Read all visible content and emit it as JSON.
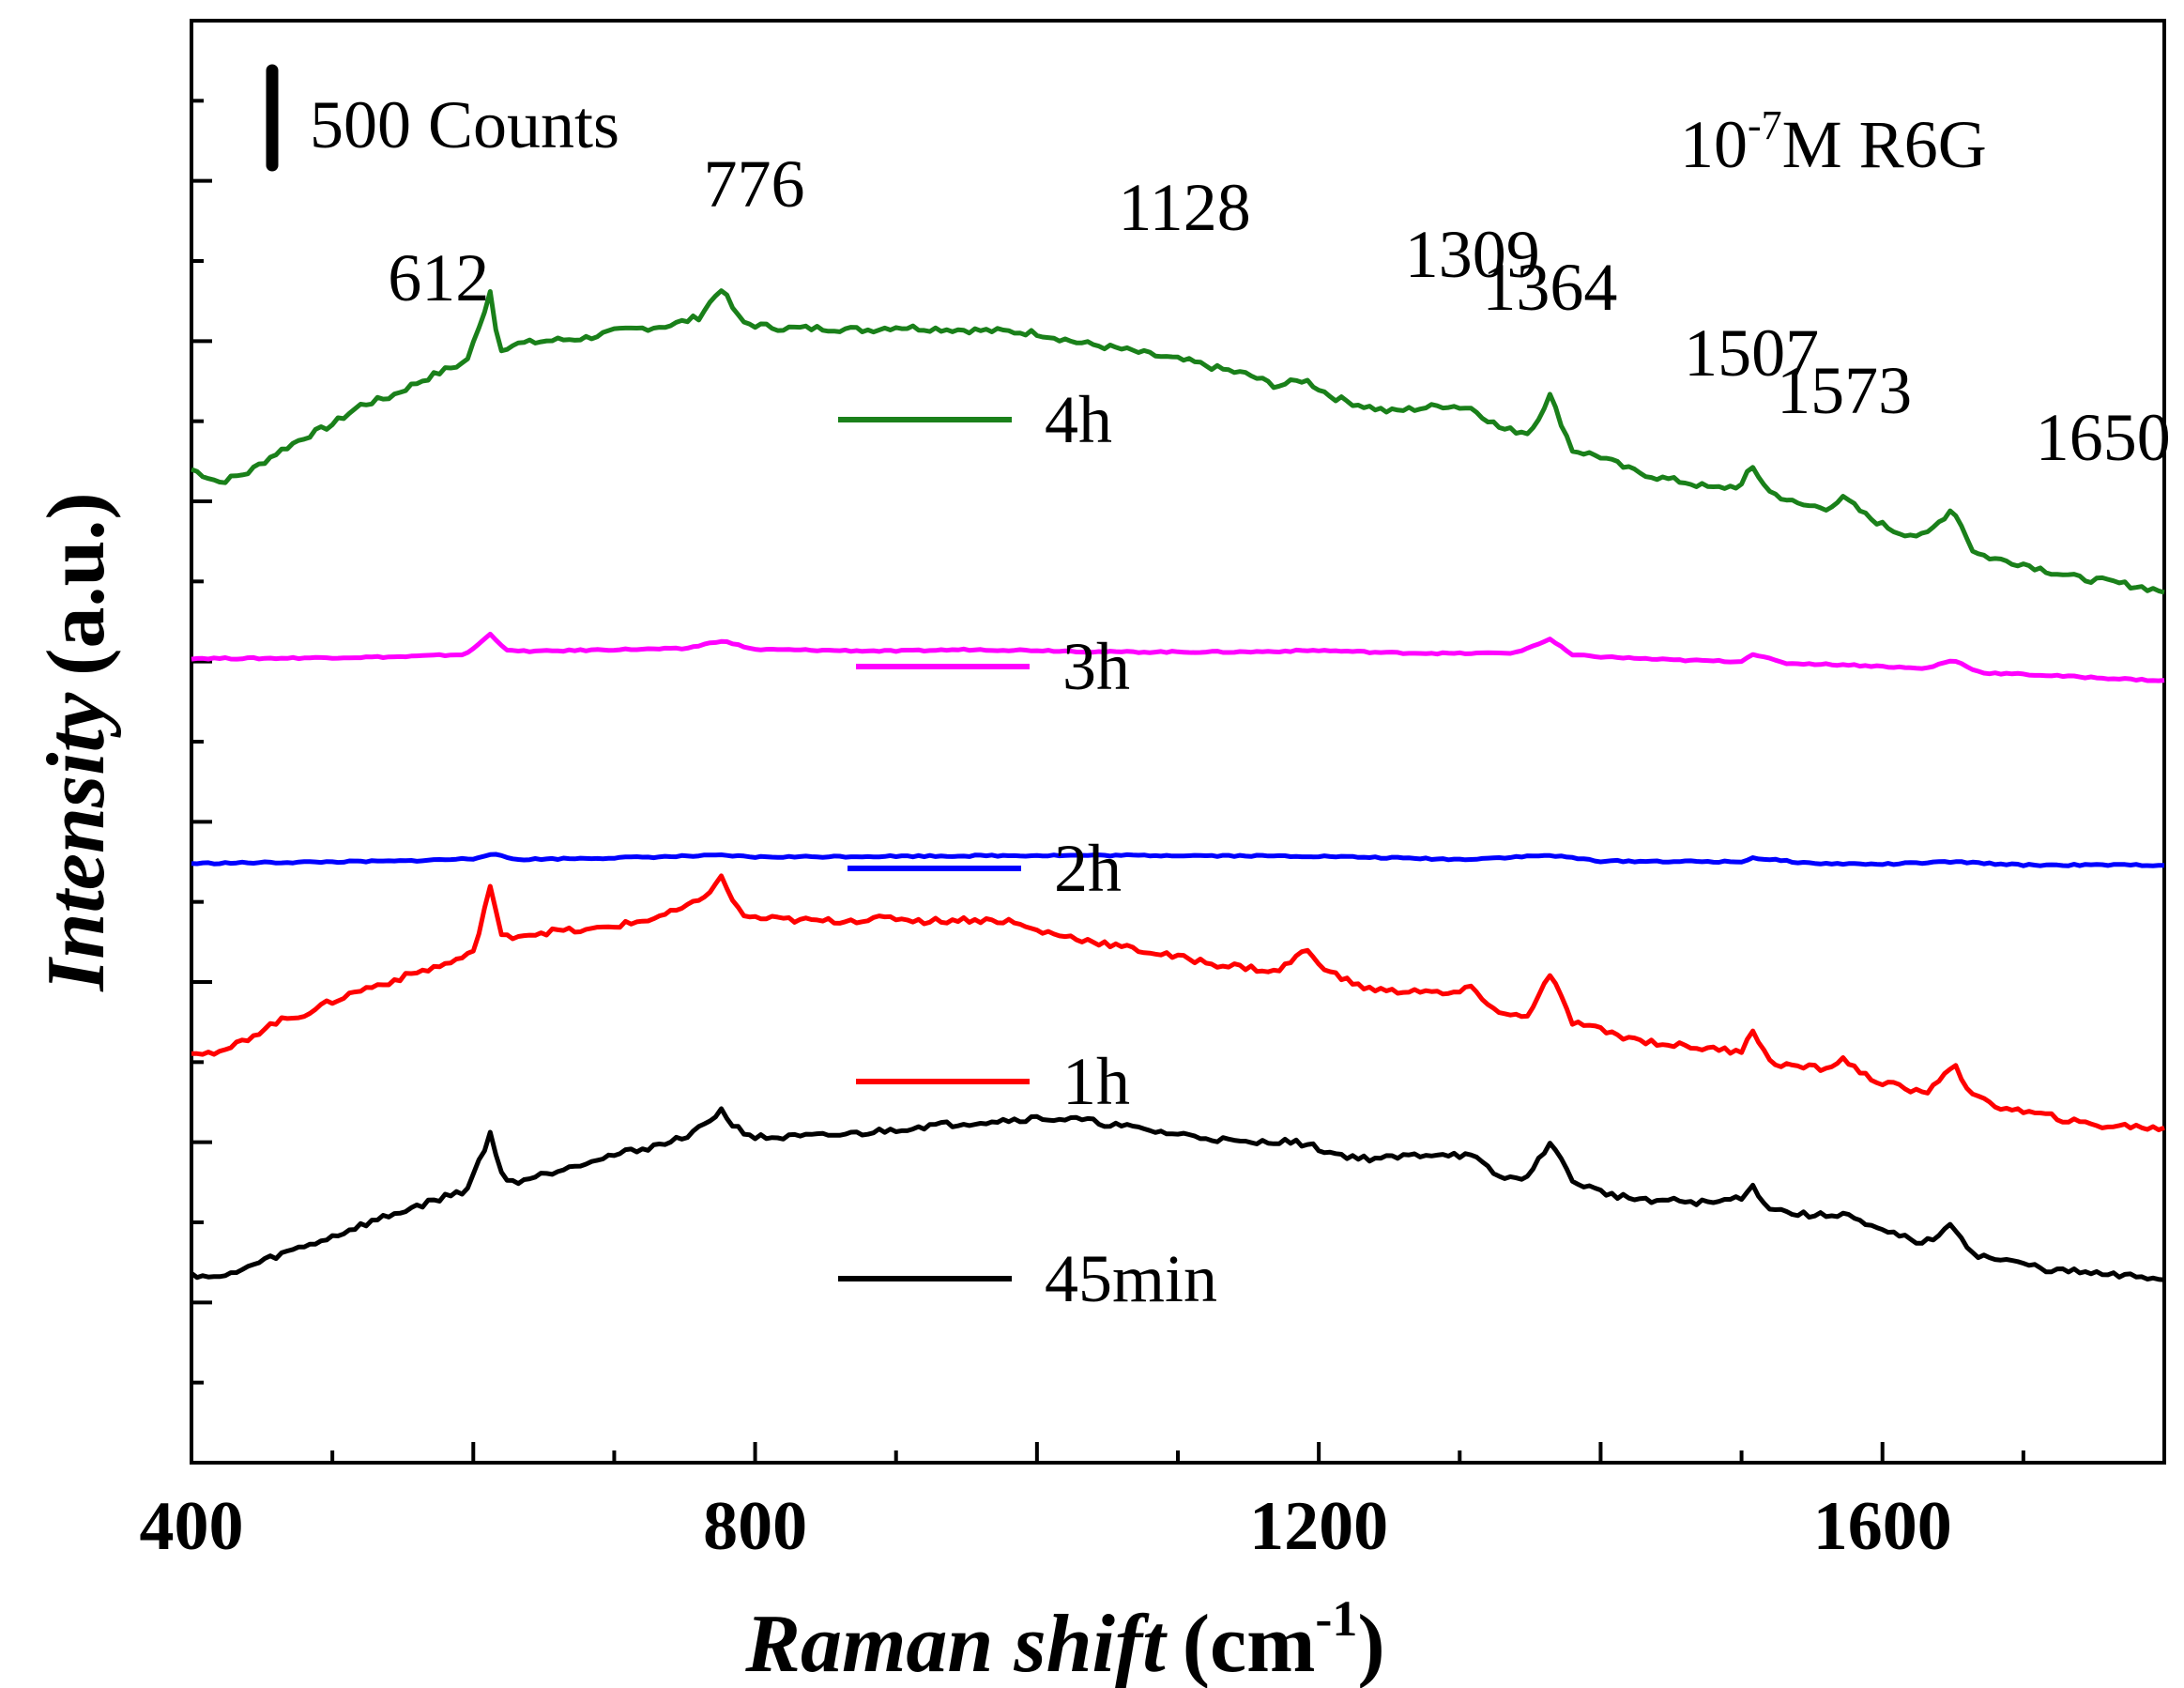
{
  "chart_data": {
    "type": "line",
    "title": "",
    "xlabel_italic": "Raman shift",
    "xlabel_unit_prefix": "(cm",
    "xlabel_unit_sup": "-1",
    "xlabel_unit_suffix": ")",
    "ylabel_italic": "Intensity",
    "ylabel_unit": "(a.u.)",
    "xlim": [
      400,
      1800
    ],
    "ylim": [
      0,
      9000
    ],
    "x_ticks": [
      400,
      800,
      1200,
      1600
    ],
    "x_tick_labels": [
      "400",
      "800",
      "1200",
      "1600"
    ],
    "y_tick_labels_shown": false,
    "scale_bar_label": "500 Counts",
    "scale_bar_value": 500,
    "sample_label_prefix": "10",
    "sample_label_sup": "-7",
    "sample_label_suffix": "M R6G",
    "peak_labels": [
      {
        "label": "612",
        "x": 612
      },
      {
        "label": "776",
        "x": 776
      },
      {
        "label": "1128",
        "x": 1128
      },
      {
        "label": "1309",
        "x": 1309
      },
      {
        "label": "1364",
        "x": 1364
      },
      {
        "label": "1507",
        "x": 1507
      },
      {
        "label": "1573",
        "x": 1573
      },
      {
        "label": "1650",
        "x": 1650
      }
    ],
    "series": [
      {
        "name": "4h",
        "color": "#1a801a",
        "x": [
          400,
          420,
          440,
          460,
          480,
          500,
          520,
          540,
          560,
          580,
          595,
          605,
          612,
          618,
          630,
          650,
          680,
          700,
          720,
          740,
          760,
          776,
          790,
          800,
          820,
          850,
          880,
          900,
          920,
          950,
          980,
          1000,
          1030,
          1060,
          1090,
          1110,
          1128,
          1150,
          1170,
          1190,
          1210,
          1230,
          1250,
          1270,
          1290,
          1309,
          1330,
          1350,
          1364,
          1380,
          1400,
          1420,
          1440,
          1460,
          1480,
          1500,
          1507,
          1520,
          1540,
          1560,
          1573,
          1590,
          1610,
          1630,
          1650,
          1665,
          1680,
          1700,
          1720,
          1740,
          1760,
          1780,
          1800
        ],
        "y": [
          6200,
          6120,
          6180,
          6300,
          6400,
          6480,
          6600,
          6650,
          6740,
          6820,
          6870,
          7100,
          7320,
          6950,
          6980,
          7000,
          7020,
          7060,
          7080,
          7100,
          7150,
          7330,
          7120,
          7100,
          7080,
          7080,
          7070,
          7090,
          7080,
          7070,
          7060,
          7050,
          6990,
          6950,
          6900,
          6870,
          6830,
          6790,
          6720,
          6760,
          6650,
          6600,
          6560,
          6580,
          6600,
          6580,
          6450,
          6430,
          6660,
          6320,
          6280,
          6200,
          6150,
          6120,
          6080,
          6100,
          6220,
          6060,
          5980,
          5960,
          6020,
          5900,
          5810,
          5780,
          5960,
          5680,
          5640,
          5610,
          5560,
          5520,
          5500,
          5470,
          5440
        ]
      },
      {
        "name": "3h",
        "color": "#ff00ff",
        "x": [
          400,
          450,
          500,
          550,
          595,
          612,
          625,
          650,
          700,
          750,
          776,
          800,
          850,
          900,
          950,
          1000,
          1050,
          1100,
          1150,
          1200,
          1250,
          1300,
          1340,
          1364,
          1380,
          1400,
          1450,
          1500,
          1507,
          1530,
          1573,
          1600,
          1630,
          1650,
          1670,
          1700,
          1750,
          1800
        ],
        "y": [
          5020,
          5020,
          5025,
          5030,
          5045,
          5170,
          5065,
          5065,
          5075,
          5080,
          5130,
          5075,
          5070,
          5065,
          5075,
          5070,
          5060,
          5060,
          5060,
          5070,
          5055,
          5050,
          5055,
          5140,
          5040,
          5030,
          5010,
          5000,
          5050,
          4990,
          4980,
          4970,
          4955,
          5010,
          4930,
          4920,
          4900,
          4880
        ]
      },
      {
        "name": "2h",
        "color": "#0000ff",
        "x": [
          400,
          450,
          500,
          550,
          600,
          612,
          630,
          700,
          776,
          800,
          900,
          1000,
          1100,
          1200,
          1300,
          1364,
          1400,
          1500,
          1507,
          1550,
          1600,
          1650,
          1700,
          1800
        ],
        "y": [
          3740,
          3745,
          3750,
          3755,
          3770,
          3800,
          3765,
          3775,
          3790,
          3780,
          3785,
          3790,
          3790,
          3785,
          3765,
          3790,
          3755,
          3750,
          3775,
          3740,
          3735,
          3750,
          3730,
          3730
        ]
      },
      {
        "name": "1h",
        "color": "#ff0000",
        "x": [
          400,
          420,
          440,
          460,
          480,
          500,
          520,
          540,
          560,
          580,
          600,
          612,
          620,
          640,
          660,
          680,
          700,
          720,
          740,
          760,
          776,
          790,
          800,
          820,
          850,
          880,
          900,
          920,
          950,
          980,
          1000,
          1030,
          1060,
          1090,
          1110,
          1128,
          1150,
          1170,
          1190,
          1210,
          1230,
          1250,
          1270,
          1290,
          1309,
          1330,
          1350,
          1364,
          1380,
          1400,
          1420,
          1440,
          1460,
          1480,
          1500,
          1507,
          1520,
          1540,
          1560,
          1573,
          1590,
          1610,
          1630,
          1650,
          1665,
          1680,
          1700,
          1720,
          1740,
          1760,
          1780,
          1800
        ],
        "y": [
          2570,
          2550,
          2650,
          2750,
          2800,
          2880,
          2950,
          3000,
          3060,
          3110,
          3180,
          3600,
          3280,
          3300,
          3320,
          3320,
          3350,
          3380,
          3430,
          3500,
          3650,
          3420,
          3400,
          3390,
          3380,
          3390,
          3400,
          3380,
          3390,
          3380,
          3320,
          3270,
          3220,
          3170,
          3140,
          3110,
          3090,
          3060,
          3200,
          3050,
          2970,
          2940,
          2950,
          2920,
          2960,
          2790,
          2800,
          3050,
          2750,
          2700,
          2650,
          2620,
          2600,
          2580,
          2570,
          2720,
          2500,
          2470,
          2460,
          2520,
          2400,
          2350,
          2300,
          2490,
          2280,
          2230,
          2190,
          2160,
          2120,
          2100,
          2100,
          2080
        ]
      },
      {
        "name": "45min",
        "color": "#000000",
        "x": [
          400,
          420,
          440,
          460,
          480,
          500,
          520,
          540,
          560,
          580,
          595,
          605,
          612,
          620,
          630,
          650,
          680,
          700,
          720,
          740,
          760,
          776,
          785,
          800,
          820,
          850,
          880,
          900,
          920,
          950,
          980,
          1000,
          1030,
          1060,
          1090,
          1110,
          1128,
          1150,
          1170,
          1190,
          1210,
          1230,
          1250,
          1270,
          1290,
          1309,
          1330,
          1350,
          1364,
          1380,
          1400,
          1420,
          1440,
          1460,
          1480,
          1500,
          1507,
          1520,
          1540,
          1560,
          1573,
          1590,
          1610,
          1630,
          1650,
          1665,
          1680,
          1700,
          1720,
          1740,
          1760,
          1780,
          1800
        ],
        "y": [
          1180,
          1150,
          1220,
          1290,
          1350,
          1410,
          1480,
          1540,
          1600,
          1660,
          1700,
          1900,
          2050,
          1800,
          1750,
          1800,
          1880,
          1920,
          1960,
          2000,
          2080,
          2200,
          2100,
          2030,
          2030,
          2040,
          2060,
          2080,
          2100,
          2120,
          2140,
          2150,
          2140,
          2100,
          2060,
          2040,
          2020,
          1990,
          2010,
          1990,
          1930,
          1900,
          1900,
          1920,
          1930,
          1910,
          1770,
          1790,
          2010,
          1760,
          1690,
          1650,
          1640,
          1630,
          1620,
          1660,
          1730,
          1590,
          1550,
          1540,
          1560,
          1470,
          1420,
          1370,
          1480,
          1300,
          1270,
          1240,
          1200,
          1190,
          1170,
          1160,
          1150
        ]
      }
    ]
  }
}
